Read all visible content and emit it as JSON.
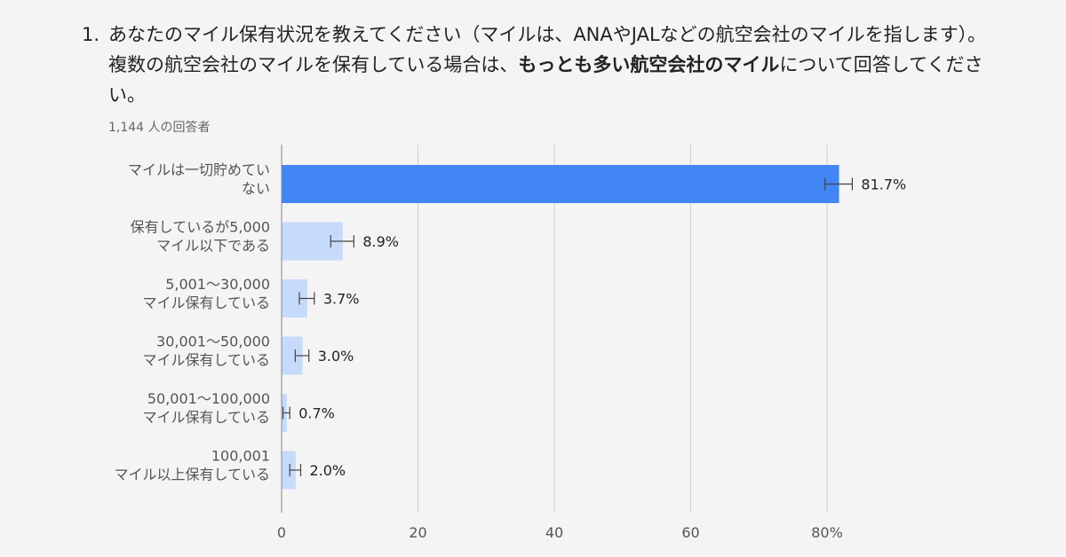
{
  "question": {
    "number": "1.",
    "text_part1": "あなたのマイル保有状況を教えてください（マイルは、ANAやJALなどの航空会社のマイルを指します）。複数の航空会社のマイルを保有している場合は、",
    "text_bold": "もっとも多い航空会社のマイル",
    "text_part2": "について回答してください。"
  },
  "respondents": "1,144 人の回答者",
  "colors": {
    "highlight_bar": "#4285f4",
    "normal_bar": "#c6dafc",
    "grid": "#d0d0d0",
    "axis": "#888888"
  },
  "chart_data": {
    "type": "bar",
    "orientation": "horizontal",
    "categories": [
      [
        "マイルは一切貯めてい",
        "ない"
      ],
      [
        "保有しているが5,000",
        "マイル以下である"
      ],
      [
        "5,001〜30,000",
        "マイル保有している"
      ],
      [
        "30,001〜50,000",
        "マイル保有している"
      ],
      [
        "50,001〜100,000",
        "マイル保有している"
      ],
      [
        "100,001",
        "マイル以上保有している"
      ]
    ],
    "values": [
      81.7,
      8.9,
      3.7,
      3.0,
      0.7,
      2.0
    ],
    "value_labels": [
      "81.7%",
      "8.9%",
      "3.7%",
      "3.0%",
      "0.7%",
      "2.0%"
    ],
    "error_bars": [
      2.0,
      1.7,
      1.1,
      1.0,
      0.5,
      0.8
    ],
    "highlight_index": 0,
    "xlim": [
      0,
      80
    ],
    "x_ticks": [
      0,
      20,
      40,
      60,
      80
    ],
    "x_tick_labels": [
      "0",
      "20",
      "40",
      "60",
      "80%"
    ],
    "grid": true
  }
}
